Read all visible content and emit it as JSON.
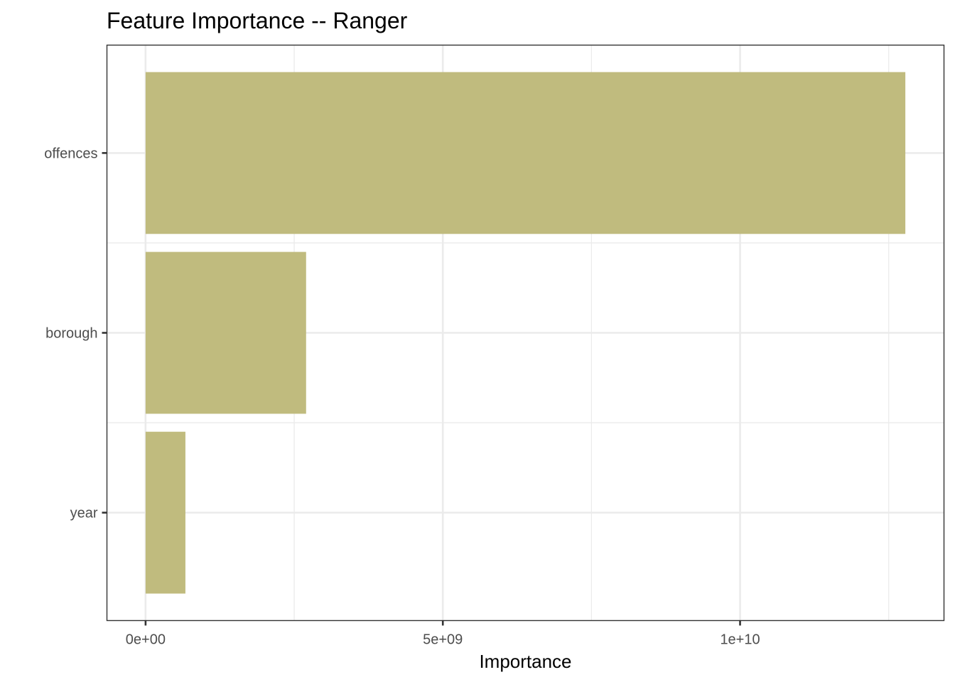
{
  "chart_data": {
    "type": "bar",
    "orientation": "horizontal",
    "title": "Feature Importance -- Ranger",
    "xlabel": "Importance",
    "ylabel": "",
    "categories": [
      "offences",
      "borough",
      "year"
    ],
    "values": [
      12780000000,
      2700000000,
      670000000
    ],
    "xlim": [
      -650000000,
      13430000000
    ],
    "xticks": [
      0,
      5000000000,
      10000000000
    ],
    "xtick_labels": [
      "0e+00",
      "5e+09",
      "1e+10"
    ],
    "x_minor_ticks": [
      2500000000,
      7500000000,
      12500000000
    ],
    "bar_color": "#c0bb7e",
    "grid": true,
    "legend": "none"
  }
}
